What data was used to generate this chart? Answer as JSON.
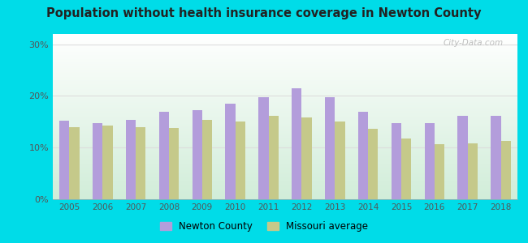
{
  "title": "Population without health insurance coverage in Newton County",
  "years": [
    2005,
    2006,
    2007,
    2008,
    2009,
    2010,
    2011,
    2012,
    2013,
    2014,
    2015,
    2016,
    2017,
    2018
  ],
  "newton_county": [
    15.2,
    14.8,
    15.3,
    17.0,
    17.3,
    18.5,
    19.7,
    21.5,
    19.7,
    17.0,
    14.8,
    14.8,
    16.2,
    16.2
  ],
  "missouri_avg": [
    14.0,
    14.3,
    14.0,
    13.8,
    15.3,
    15.0,
    16.1,
    15.9,
    15.0,
    13.6,
    11.7,
    10.7,
    10.9,
    11.3
  ],
  "newton_color": "#b39ddb",
  "missouri_color": "#c5c98a",
  "bg_outer": "#00dce8",
  "bg_chart_topleft": "#d8f0e8",
  "bg_chart_topright": "#ffffff",
  "bg_chart_bottom": "#d0ecd8",
  "grid_color": "#dddddd",
  "yticks": [
    0,
    10,
    20,
    30
  ],
  "ylim": [
    0,
    32
  ],
  "legend_newton": "Newton County",
  "legend_missouri": "Missouri average",
  "watermark": "City-Data.com"
}
